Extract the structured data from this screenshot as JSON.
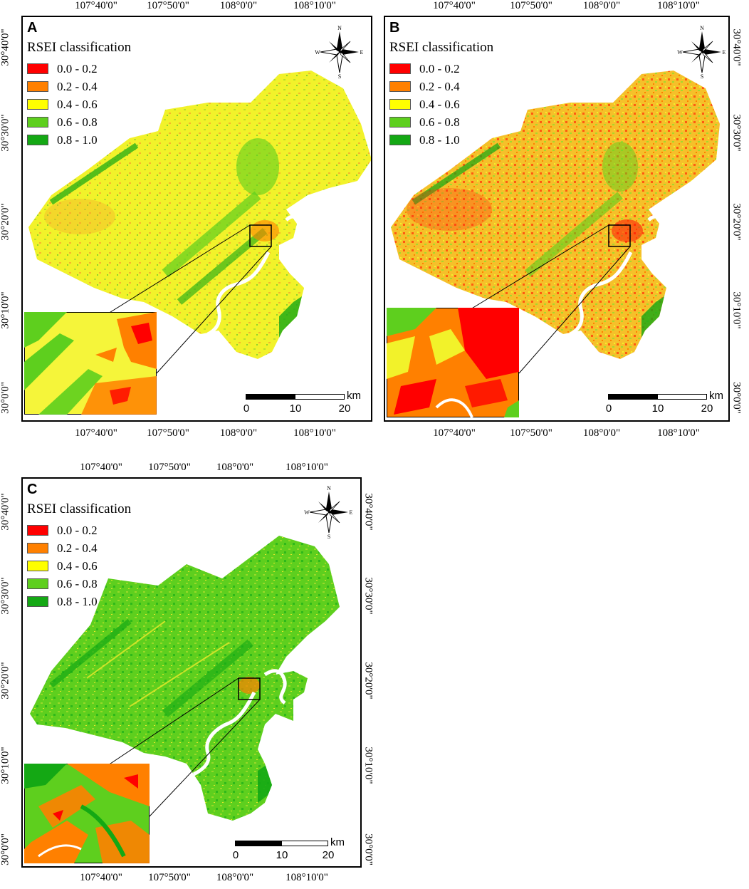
{
  "colors": {
    "class1": "#ff0000",
    "class2": "#ff8000",
    "class3": "#ffff00",
    "class4": "#5ecf1e",
    "class5": "#14a814"
  },
  "legend": {
    "title": "RSEI classification",
    "classes": [
      "0.0 - 0.2",
      "0.2 - 0.4",
      "0.4 - 0.6",
      "0.6 - 0.8",
      "0.8 - 1.0"
    ]
  },
  "longitude_labels": [
    "107°40'0\"",
    "107°50'0\"",
    "108°0'0\"",
    "108°10'0\""
  ],
  "latitude_labels": [
    "30°40'0\"",
    "30°30'0\"",
    "30°20'0\"",
    "30°10'0\"",
    "30°0'0\""
  ],
  "scalebar": {
    "unit": "km",
    "ticks": [
      "0",
      "10",
      "20"
    ]
  },
  "compass": {
    "n": "N",
    "s": "S",
    "e": "E",
    "w": "W"
  },
  "panels": [
    {
      "letter": "A",
      "dominant": "class3",
      "inset_mix": [
        "class3",
        "class2",
        "class1",
        "class4"
      ]
    },
    {
      "letter": "B",
      "dominant": "class2",
      "inset_mix": [
        "class1",
        "class2",
        "class3",
        "class4"
      ]
    },
    {
      "letter": "C",
      "dominant": "class4",
      "inset_mix": [
        "class2",
        "class4",
        "class5",
        "class1"
      ]
    }
  ]
}
